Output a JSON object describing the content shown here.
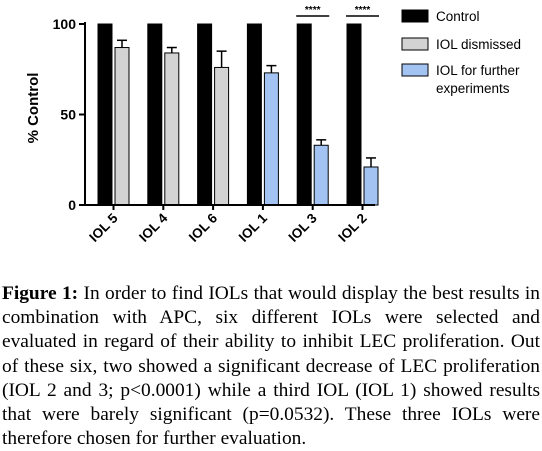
{
  "chart_data": {
    "type": "bar",
    "categories": [
      "IOL 5",
      "IOL 4",
      "IOL 6",
      "IOL 1",
      "IOL 3",
      "IOL 2"
    ],
    "ylabel": "% Control",
    "ylim": [
      0,
      100
    ],
    "yticks": [
      0,
      50,
      100
    ],
    "legend_position": "right",
    "series": [
      {
        "name": "Control",
        "color": "#000000",
        "values": [
          100,
          100,
          100,
          100,
          100,
          100
        ]
      },
      {
        "name": "IOL dismissed",
        "color": "#d3d3d3",
        "values": [
          87,
          84,
          76,
          null,
          null,
          null
        ],
        "errors": [
          4,
          3,
          9,
          null,
          null,
          null
        ]
      },
      {
        "name": "IOL for further experiments",
        "color": "#a3c4f3",
        "values": [
          null,
          null,
          null,
          73,
          33,
          21
        ],
        "errors": [
          null,
          null,
          null,
          4,
          3,
          5
        ]
      }
    ],
    "significance": [
      {
        "category": "IOL 3",
        "label": "****"
      },
      {
        "category": "IOL 2",
        "label": "****"
      }
    ]
  },
  "legend": {
    "items": [
      {
        "label": "Control",
        "color": "#000000"
      },
      {
        "label": "IOL dismissed",
        "color": "#d3d3d3"
      },
      {
        "label": "IOL for further experiments",
        "line1": "IOL for further",
        "line2": "experiments",
        "color": "#a3c4f3"
      }
    ]
  },
  "caption": {
    "label": "Figure 1:",
    "text": "In order to find IOLs that would display the best results in combination with APC, six different IOLs were selected and evaluated in regard of their ability to inhibit LEC proliferation. Out of these six, two showed a significant decrease of LEC proliferation (IOL 2 and 3; p<0.0001) while a third IOL (IOL 1) showed results that were barely significant (p=0.0532). These three IOLs were therefore chosen for further evaluation."
  }
}
